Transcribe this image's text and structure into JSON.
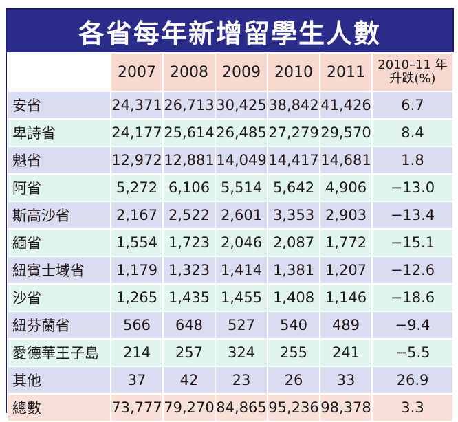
{
  "title": "各省每年新增留學生人數",
  "chart_data": {
    "type": "table",
    "title": "各省每年新增留學生人數",
    "columns": [
      "2007",
      "2008",
      "2009",
      "2010",
      "2011",
      "2010–11 年升跌(%)"
    ],
    "pct_header_line1": "2010–11 年",
    "pct_header_line2": "升跌(%)",
    "rows": [
      {
        "name": "安省",
        "values": [
          "24,371",
          "26,713",
          "30,425",
          "38,842",
          "41,426"
        ],
        "change": "6.7"
      },
      {
        "name": "卑詩省",
        "values": [
          "24,177",
          "25,614",
          "26,485",
          "27,279",
          "29,570"
        ],
        "change": "8.4"
      },
      {
        "name": "魁省",
        "values": [
          "12,972",
          "12,881",
          "14,049",
          "14,417",
          "14,681"
        ],
        "change": "1.8"
      },
      {
        "name": "阿省",
        "values": [
          "5,272",
          "6,106",
          "5,514",
          "5,642",
          "4,906"
        ],
        "change": "−13.0"
      },
      {
        "name": "斯高沙省",
        "values": [
          "2,167",
          "2,522",
          "2,601",
          "3,353",
          "2,903"
        ],
        "change": "−13.4"
      },
      {
        "name": "緬省",
        "values": [
          "1,554",
          "1,723",
          "2,046",
          "2,087",
          "1,772"
        ],
        "change": "−15.1"
      },
      {
        "name": "紐賓士域省",
        "values": [
          "1,179",
          "1,323",
          "1,414",
          "1,381",
          "1,207"
        ],
        "change": "−12.6"
      },
      {
        "name": "沙省",
        "values": [
          "1,265",
          "1,435",
          "1,455",
          "1,408",
          "1,146"
        ],
        "change": "−18.6"
      },
      {
        "name": "紐芬蘭省",
        "values": [
          "566",
          "648",
          "527",
          "540",
          "489"
        ],
        "change": "−9.4"
      },
      {
        "name": "愛德華王子島",
        "values": [
          "214",
          "257",
          "324",
          "255",
          "241"
        ],
        "change": "−5.5"
      },
      {
        "name": "其他",
        "values": [
          "37",
          "42",
          "23",
          "26",
          "33"
        ],
        "change": "26.9"
      },
      {
        "name": "總數",
        "values": [
          "73,777",
          "79,270",
          "84,865",
          "95,236",
          "98,378"
        ],
        "change": "3.3"
      }
    ]
  },
  "colors": {
    "title_bg": "#2b2b8a",
    "header_bg": "#f8d8cf",
    "row_a": "#dcdcf0",
    "row_b": "#e0f5ef",
    "total_row": "#fbe0d8"
  }
}
